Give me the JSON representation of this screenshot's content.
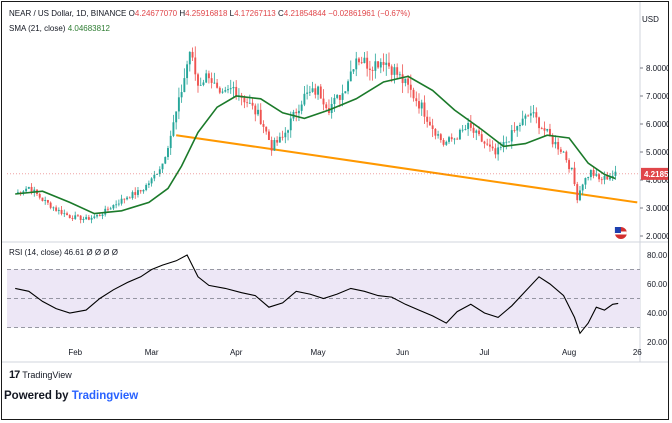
{
  "header": {
    "symbol": "NEAR / US Dollar, 1D, BINANCE",
    "open_label": "O",
    "open": "4.24677070",
    "high_label": "H",
    "high": "4.25916818",
    "low_label": "L",
    "low": "4.17267113",
    "close_label": "C",
    "close": "4.21854844",
    "change": "−0.02861961 (−0.67%)",
    "sma_label": "SMA (21, close)",
    "sma_value": "4.04683812",
    "currency": "USD"
  },
  "rsi_header": {
    "label": "RSI (14, close)",
    "value": "46.61",
    "extras": "Ø Ø Ø Ø"
  },
  "colors": {
    "up": "#26a69a",
    "down": "#ef5350",
    "sma": "#1b7a2a",
    "trendline": "#ff9800",
    "rsi_line": "#000000",
    "rsi_band": "#ede7f6",
    "price_tag": "#e0464a"
  },
  "footer": {
    "tv_logo": "17",
    "brand": "TradingView",
    "powered_prefix": "Powered by",
    "powered_brand": "Tradingview"
  },
  "chart_data": [
    {
      "type": "candlestick",
      "series": [
        {
          "name": "NEAR / US Dollar, 1D, BINANCE",
          "last_close": 4.21854844
        },
        {
          "name": "SMA (21, close)",
          "last_value": 4.04683812
        }
      ],
      "ylim": [
        2.0,
        9.0
      ],
      "y_ticks": [
        "2.00000",
        "3.00000",
        "4.00000",
        "5.00000",
        "6.00000",
        "7.00000",
        "8.00000"
      ],
      "x_ticks": [
        "Feb",
        "Mar",
        "Apr",
        "May",
        "Jun",
        "Jul",
        "Aug",
        "26"
      ],
      "price_tag": "4.2185",
      "trendline": {
        "start": [
          "2021-03-10",
          5.6
        ],
        "end": [
          "2021-08-26",
          3.2
        ]
      },
      "close_path": [
        [
          "2021-01-10",
          3.5
        ],
        [
          "2021-01-15",
          3.75
        ],
        [
          "2021-01-20",
          3.3
        ],
        [
          "2021-01-25",
          2.95
        ],
        [
          "2021-01-30",
          2.7
        ],
        [
          "2021-02-05",
          2.6
        ],
        [
          "2021-02-10",
          2.75
        ],
        [
          "2021-02-15",
          3.1
        ],
        [
          "2021-02-20",
          3.4
        ],
        [
          "2021-02-25",
          3.6
        ],
        [
          "2021-03-01",
          4.0
        ],
        [
          "2021-03-05",
          4.6
        ],
        [
          "2021-03-08",
          5.6
        ],
        [
          "2021-03-12",
          7.2
        ],
        [
          "2021-03-15",
          8.6
        ],
        [
          "2021-03-18",
          7.4
        ],
        [
          "2021-03-22",
          7.8
        ],
        [
          "2021-03-26",
          6.9
        ],
        [
          "2021-03-31",
          7.3
        ],
        [
          "2021-04-05",
          6.8
        ],
        [
          "2021-04-10",
          6.2
        ],
        [
          "2021-04-14",
          5.2
        ],
        [
          "2021-04-18",
          5.5
        ],
        [
          "2021-04-22",
          6.3
        ],
        [
          "2021-04-26",
          7.0
        ],
        [
          "2021-05-01",
          7.2
        ],
        [
          "2021-05-05",
          6.6
        ],
        [
          "2021-05-10",
          7.1
        ],
        [
          "2021-05-15",
          8.4
        ],
        [
          "2021-05-20",
          8.1
        ],
        [
          "2021-05-25",
          8.3
        ],
        [
          "2021-05-29",
          7.9
        ],
        [
          "2021-06-03",
          7.3
        ],
        [
          "2021-06-08",
          6.6
        ],
        [
          "2021-06-12",
          5.9
        ],
        [
          "2021-06-16",
          5.3
        ],
        [
          "2021-06-20",
          5.5
        ],
        [
          "2021-06-25",
          5.9
        ],
        [
          "2021-06-30",
          5.4
        ],
        [
          "2021-07-05",
          4.9
        ],
        [
          "2021-07-10",
          5.5
        ],
        [
          "2021-07-14",
          6.0
        ],
        [
          "2021-07-18",
          6.4
        ],
        [
          "2021-07-22",
          5.9
        ],
        [
          "2021-07-26",
          5.4
        ],
        [
          "2021-07-30",
          5.0
        ],
        [
          "2021-08-02",
          4.3
        ],
        [
          "2021-08-04",
          3.4
        ],
        [
          "2021-08-06",
          3.9
        ],
        [
          "2021-08-09",
          4.3
        ],
        [
          "2021-08-12",
          4.0
        ],
        [
          "2021-08-15",
          4.1
        ],
        [
          "2021-08-18",
          4.2
        ]
      ],
      "sma_path": [
        [
          "2021-01-10",
          3.5
        ],
        [
          "2021-01-20",
          3.6
        ],
        [
          "2021-01-30",
          3.2
        ],
        [
          "2021-02-08",
          2.8
        ],
        [
          "2021-02-18",
          2.9
        ],
        [
          "2021-02-28",
          3.2
        ],
        [
          "2021-03-07",
          3.7
        ],
        [
          "2021-03-12",
          4.5
        ],
        [
          "2021-03-18",
          5.7
        ],
        [
          "2021-03-25",
          6.6
        ],
        [
          "2021-04-01",
          7.0
        ],
        [
          "2021-04-10",
          6.9
        ],
        [
          "2021-04-18",
          6.4
        ],
        [
          "2021-04-26",
          6.2
        ],
        [
          "2021-05-05",
          6.5
        ],
        [
          "2021-05-15",
          6.9
        ],
        [
          "2021-05-25",
          7.5
        ],
        [
          "2021-06-03",
          7.7
        ],
        [
          "2021-06-12",
          7.2
        ],
        [
          "2021-06-20",
          6.5
        ],
        [
          "2021-06-30",
          5.8
        ],
        [
          "2021-07-08",
          5.2
        ],
        [
          "2021-07-16",
          5.3
        ],
        [
          "2021-07-24",
          5.6
        ],
        [
          "2021-08-01",
          5.5
        ],
        [
          "2021-08-08",
          4.6
        ],
        [
          "2021-08-14",
          4.2
        ],
        [
          "2021-08-18",
          4.05
        ]
      ]
    },
    {
      "type": "line",
      "series": [
        {
          "name": "RSI (14, close)",
          "last_value": 46.61
        }
      ],
      "ylim": [
        20,
        80
      ],
      "y_ticks": [
        "20.00",
        "40.00",
        "60.00",
        "80.00"
      ],
      "bands": [
        30,
        50,
        70
      ],
      "path": [
        [
          "2021-01-10",
          57
        ],
        [
          "2021-01-15",
          55
        ],
        [
          "2021-01-20",
          48
        ],
        [
          "2021-01-25",
          43
        ],
        [
          "2021-01-30",
          40
        ],
        [
          "2021-02-05",
          42
        ],
        [
          "2021-02-10",
          50
        ],
        [
          "2021-02-15",
          56
        ],
        [
          "2021-02-20",
          61
        ],
        [
          "2021-02-25",
          65
        ],
        [
          "2021-03-01",
          70
        ],
        [
          "2021-03-05",
          73
        ],
        [
          "2021-03-10",
          76
        ],
        [
          "2021-03-14",
          80
        ],
        [
          "2021-03-18",
          65
        ],
        [
          "2021-03-22",
          59
        ],
        [
          "2021-03-28",
          57
        ],
        [
          "2021-04-03",
          54
        ],
        [
          "2021-04-08",
          52
        ],
        [
          "2021-04-13",
          44
        ],
        [
          "2021-04-18",
          47
        ],
        [
          "2021-04-23",
          55
        ],
        [
          "2021-04-28",
          53
        ],
        [
          "2021-05-03",
          50
        ],
        [
          "2021-05-08",
          53
        ],
        [
          "2021-05-13",
          57
        ],
        [
          "2021-05-18",
          55
        ],
        [
          "2021-05-23",
          52
        ],
        [
          "2021-05-28",
          51
        ],
        [
          "2021-06-02",
          46
        ],
        [
          "2021-06-07",
          42
        ],
        [
          "2021-06-12",
          38
        ],
        [
          "2021-06-17",
          33
        ],
        [
          "2021-06-21",
          41
        ],
        [
          "2021-06-26",
          46
        ],
        [
          "2021-07-01",
          40
        ],
        [
          "2021-07-06",
          37
        ],
        [
          "2021-07-11",
          45
        ],
        [
          "2021-07-16",
          55
        ],
        [
          "2021-07-21",
          65
        ],
        [
          "2021-07-25",
          60
        ],
        [
          "2021-07-30",
          52
        ],
        [
          "2021-08-03",
          37
        ],
        [
          "2021-08-05",
          26
        ],
        [
          "2021-08-08",
          33
        ],
        [
          "2021-08-11",
          44
        ],
        [
          "2021-08-14",
          42
        ],
        [
          "2021-08-17",
          46
        ],
        [
          "2021-08-19",
          46.61
        ]
      ]
    }
  ]
}
